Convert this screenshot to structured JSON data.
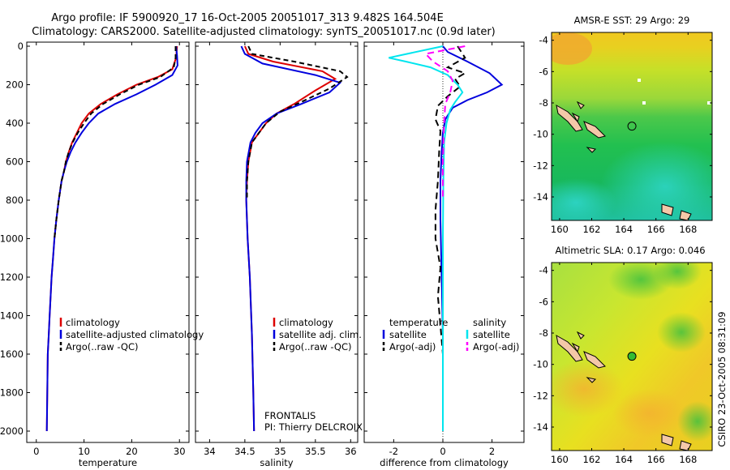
{
  "figure": {
    "title_line1": "Argo profile: IF 5900920_17 16-Oct-2005 20051017_313 9.482S 164.504E",
    "title_line2": "Climatology: CARS2000. Satellite-adjusted climatology: synTS_20051017.nc (0.9d later)",
    "credit": "CSIRO 23-Oct-2005 08:31:09",
    "frontalis": "FRONTALIS",
    "pi": "PI: Thierry DELCROIX"
  },
  "colors": {
    "climatology": "#dd0000",
    "satellite": "#0000dd",
    "argo": "#000000",
    "salinity_satellite": "#00e5ee",
    "salinity_argo": "#ff00ff"
  },
  "chart_data": [
    {
      "type": "line",
      "xlabel": "temperature",
      "ylabel": "",
      "xlim": [
        -2,
        32
      ],
      "ylim": [
        2000,
        0
      ],
      "xticks": [
        0,
        10,
        20,
        30
      ],
      "yticks": [
        0,
        200,
        400,
        600,
        800,
        1000,
        1200,
        1400,
        1600,
        1800,
        2000
      ],
      "legend": [
        "climatology",
        "satellite-adjusted climatology",
        "Argo(..raw -QC)"
      ],
      "series": [
        {
          "name": "climatology",
          "color": "#dd0000",
          "dash": "",
          "x": [
            29.5,
            29.3,
            28.5,
            25.5,
            21,
            17,
            13.5,
            11,
            9.5,
            8.5,
            7.5,
            6.8,
            6.2,
            5.8,
            5.3,
            4.7,
            4.2,
            3.8,
            3.5,
            3.2,
            3.0,
            2.8,
            2.6,
            2.4,
            2.3,
            2.2
          ],
          "y": [
            0,
            60,
            120,
            160,
            200,
            250,
            300,
            350,
            400,
            450,
            500,
            550,
            600,
            650,
            700,
            800,
            900,
            1000,
            1100,
            1200,
            1300,
            1400,
            1500,
            1600,
            1800,
            2000
          ]
        },
        {
          "name": "satellite-adjusted climatology",
          "color": "#0000dd",
          "dash": "",
          "x": [
            29.3,
            29.5,
            29.6,
            28.5,
            25,
            21,
            16.5,
            13,
            11,
            9.5,
            8.2,
            7.2,
            6.4,
            5.8,
            5.3,
            4.7,
            4.2,
            3.8,
            3.5,
            3.2,
            3.0,
            2.8,
            2.6,
            2.4,
            2.3,
            2.2
          ],
          "y": [
            0,
            50,
            100,
            150,
            200,
            250,
            300,
            350,
            400,
            450,
            500,
            550,
            600,
            650,
            700,
            800,
            900,
            1000,
            1100,
            1200,
            1300,
            1400,
            1500,
            1600,
            1800,
            2000
          ]
        },
        {
          "name": "Argo(..raw -QC)",
          "color": "#000000",
          "dash": "6,4",
          "x": [
            29.2,
            29.2,
            28.8,
            26,
            21.5,
            17.5,
            14,
            11.5,
            10,
            8.7,
            7.6,
            6.8,
            6.2,
            5.8,
            5.3,
            4.7,
            4.2,
            3.8
          ],
          "y": [
            0,
            60,
            110,
            160,
            200,
            250,
            300,
            350,
            400,
            450,
            500,
            550,
            600,
            650,
            700,
            800,
            900,
            1000
          ]
        }
      ]
    },
    {
      "type": "line",
      "xlabel": "salinity",
      "ylabel": "",
      "xlim": [
        33.8,
        36.1
      ],
      "ylim": [
        2000,
        0
      ],
      "xticks": [
        34,
        34.5,
        35,
        35.5,
        36
      ],
      "yticks": [
        0,
        200,
        400,
        600,
        800,
        1000,
        1200,
        1400,
        1600,
        1800,
        2000
      ],
      "legend": [
        "climatology",
        "satellite adj. clim.",
        "Argo(..raw -QC)"
      ],
      "series": [
        {
          "name": "climatology",
          "color": "#dd0000",
          "dash": "",
          "x": [
            34.5,
            34.55,
            34.9,
            35.6,
            35.78,
            35.5,
            35.2,
            34.95,
            34.8,
            34.7,
            34.6,
            34.55,
            34.53,
            34.52,
            34.54,
            34.57,
            34.6,
            34.62,
            34.63
          ],
          "y": [
            0,
            40,
            80,
            130,
            170,
            230,
            300,
            350,
            400,
            450,
            500,
            600,
            700,
            800,
            1000,
            1200,
            1500,
            1800,
            2000
          ]
        },
        {
          "name": "satellite adj. clim.",
          "color": "#0000dd",
          "dash": "",
          "x": [
            34.45,
            34.5,
            34.75,
            35.5,
            35.85,
            35.7,
            35.3,
            34.95,
            34.75,
            34.65,
            34.58,
            34.53,
            34.52,
            34.52,
            34.54,
            34.57,
            34.6,
            34.62,
            34.63
          ],
          "y": [
            0,
            40,
            90,
            150,
            190,
            240,
            300,
            350,
            400,
            450,
            500,
            600,
            700,
            800,
            1000,
            1200,
            1500,
            1800,
            2000
          ]
        },
        {
          "name": "Argo(..raw -QC)",
          "color": "#000000",
          "dash": "6,4",
          "x": [
            34.55,
            34.6,
            35.2,
            35.85,
            35.95,
            35.7,
            35.3,
            35.0,
            34.8,
            34.7,
            34.6,
            34.55,
            34.53,
            34.53
          ],
          "y": [
            0,
            40,
            80,
            130,
            160,
            220,
            290,
            340,
            400,
            450,
            500,
            600,
            700,
            800
          ]
        }
      ]
    },
    {
      "type": "line",
      "xlabel": "difference from climatology",
      "ylabel": "",
      "xlim": [
        -3.2,
        3.3
      ],
      "ylim": [
        2000,
        0
      ],
      "xticks": [
        -2,
        0,
        2
      ],
      "yticks": [
        0,
        200,
        400,
        600,
        800,
        1000,
        1200,
        1400,
        1600,
        1800,
        2000
      ],
      "legend_temperature_header": "temperature",
      "legend_salinity_header": "salinity",
      "legend": [
        "satellite",
        "Argo(-adj)",
        "satellite",
        "Argo(-adj)"
      ],
      "series": [
        {
          "name": "satellite",
          "group": "temperature",
          "color": "#0000dd",
          "dash": "",
          "x": [
            0,
            0.2,
            1.0,
            1.9,
            2.4,
            1.8,
            1.0,
            0.4,
            0.1,
            0.0,
            -0.05,
            -0.1,
            -0.1,
            -0.05,
            0,
            0
          ],
          "y": [
            0,
            30,
            80,
            140,
            200,
            240,
            280,
            320,
            380,
            450,
            550,
            700,
            900,
            1200,
            1500,
            2000
          ]
        },
        {
          "name": "Argo(-adj)",
          "group": "temperature",
          "color": "#000000",
          "dash": "8,5",
          "x": [
            0.6,
            0.9,
            0.2,
            0.9,
            0.5,
            0.7,
            0.2,
            -0.2,
            -0.3,
            -0.1,
            -0.15,
            -0.2,
            -0.3,
            -0.3,
            -0.1,
            -0.2,
            -0.1,
            0
          ],
          "y": [
            0,
            60,
            110,
            140,
            170,
            210,
            260,
            310,
            380,
            440,
            550,
            700,
            850,
            1000,
            1150,
            1300,
            1450,
            1600
          ]
        },
        {
          "name": "satellite",
          "group": "salinity",
          "color": "#00e5ee",
          "dash": "",
          "x": [
            0,
            -2.2,
            -1.5,
            -0.5,
            0.2,
            0.6,
            0.8,
            0.5,
            0.3,
            0.15,
            0.05,
            0.02,
            0,
            0
          ],
          "y": [
            0,
            60,
            80,
            110,
            150,
            200,
            240,
            290,
            330,
            400,
            500,
            700,
            1000,
            2000
          ]
        },
        {
          "name": "Argo(-adj)",
          "group": "salinity",
          "color": "#ff00ff",
          "dash": "8,5",
          "x": [
            0.9,
            -0.7,
            -0.4,
            0.2,
            0.4,
            0.3,
            0.1,
            0.05,
            0,
            0
          ],
          "y": [
            0,
            40,
            80,
            130,
            180,
            240,
            300,
            400,
            600,
            800
          ]
        }
      ]
    },
    {
      "type": "heatmap",
      "title": "AMSR-E SST: 29 Argo: 29",
      "xlim": [
        159.5,
        169.5
      ],
      "ylim": [
        -15.5,
        -3.5
      ],
      "xticks": [
        160,
        162,
        164,
        166,
        168
      ],
      "yticks": [
        -4,
        -6,
        -8,
        -10,
        -12,
        -14
      ],
      "marker": {
        "x": 164.504,
        "y": -9.482,
        "filled": false
      }
    },
    {
      "type": "heatmap",
      "title": "Altimetric SLA: 0.17 Argo: 0.046",
      "xlim": [
        159.5,
        169.5
      ],
      "ylim": [
        -15.5,
        -3.5
      ],
      "xticks": [
        160,
        162,
        164,
        166,
        168
      ],
      "yticks": [
        -4,
        -6,
        -8,
        -10,
        -12,
        -14
      ],
      "marker": {
        "x": 164.504,
        "y": -9.482,
        "filled": true
      }
    }
  ]
}
